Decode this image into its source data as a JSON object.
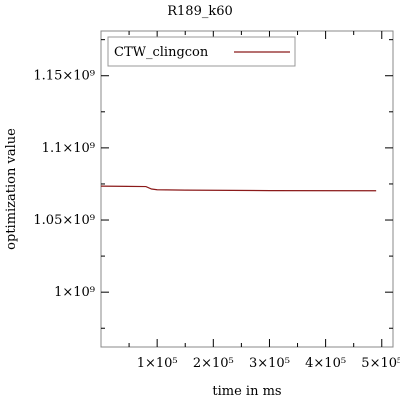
{
  "chart_data": {
    "type": "line",
    "title": "R189_k60",
    "xlabel": "time in ms",
    "ylabel": "optimization value",
    "xlim": [
      0,
      520000
    ],
    "ylim": [
      962000000,
      1181000000
    ],
    "x_ticks": [
      {
        "value": 100000,
        "label": "1×10⁵"
      },
      {
        "value": 200000,
        "label": "2×10⁵"
      },
      {
        "value": 300000,
        "label": "3×10⁵"
      },
      {
        "value": 400000,
        "label": "4×10⁵"
      },
      {
        "value": 500000,
        "label": "5×10⁵"
      }
    ],
    "x_minor_ticks": [
      50000,
      150000,
      250000,
      350000,
      450000
    ],
    "y_ticks": [
      {
        "value": 1000000000,
        "label": "1×10⁹"
      },
      {
        "value": 1050000000,
        "label": "1.05×10⁹"
      },
      {
        "value": 1100000000,
        "label": "1.1×10⁹"
      },
      {
        "value": 1150000000,
        "label": "1.15×10⁹"
      }
    ],
    "y_minor_ticks": [
      975000000,
      1025000000,
      1075000000,
      1125000000,
      1175000000
    ],
    "grid": false,
    "legend": "top-left",
    "series": [
      {
        "name": "CTW_clingcon",
        "color": "#8b1a1a",
        "x": [
          0,
          80000,
          90000,
          100000,
          150000,
          300000,
          490000
        ],
        "y": [
          1073500000,
          1073200000,
          1071500000,
          1071000000,
          1070700000,
          1070400000,
          1070300000
        ]
      }
    ]
  }
}
